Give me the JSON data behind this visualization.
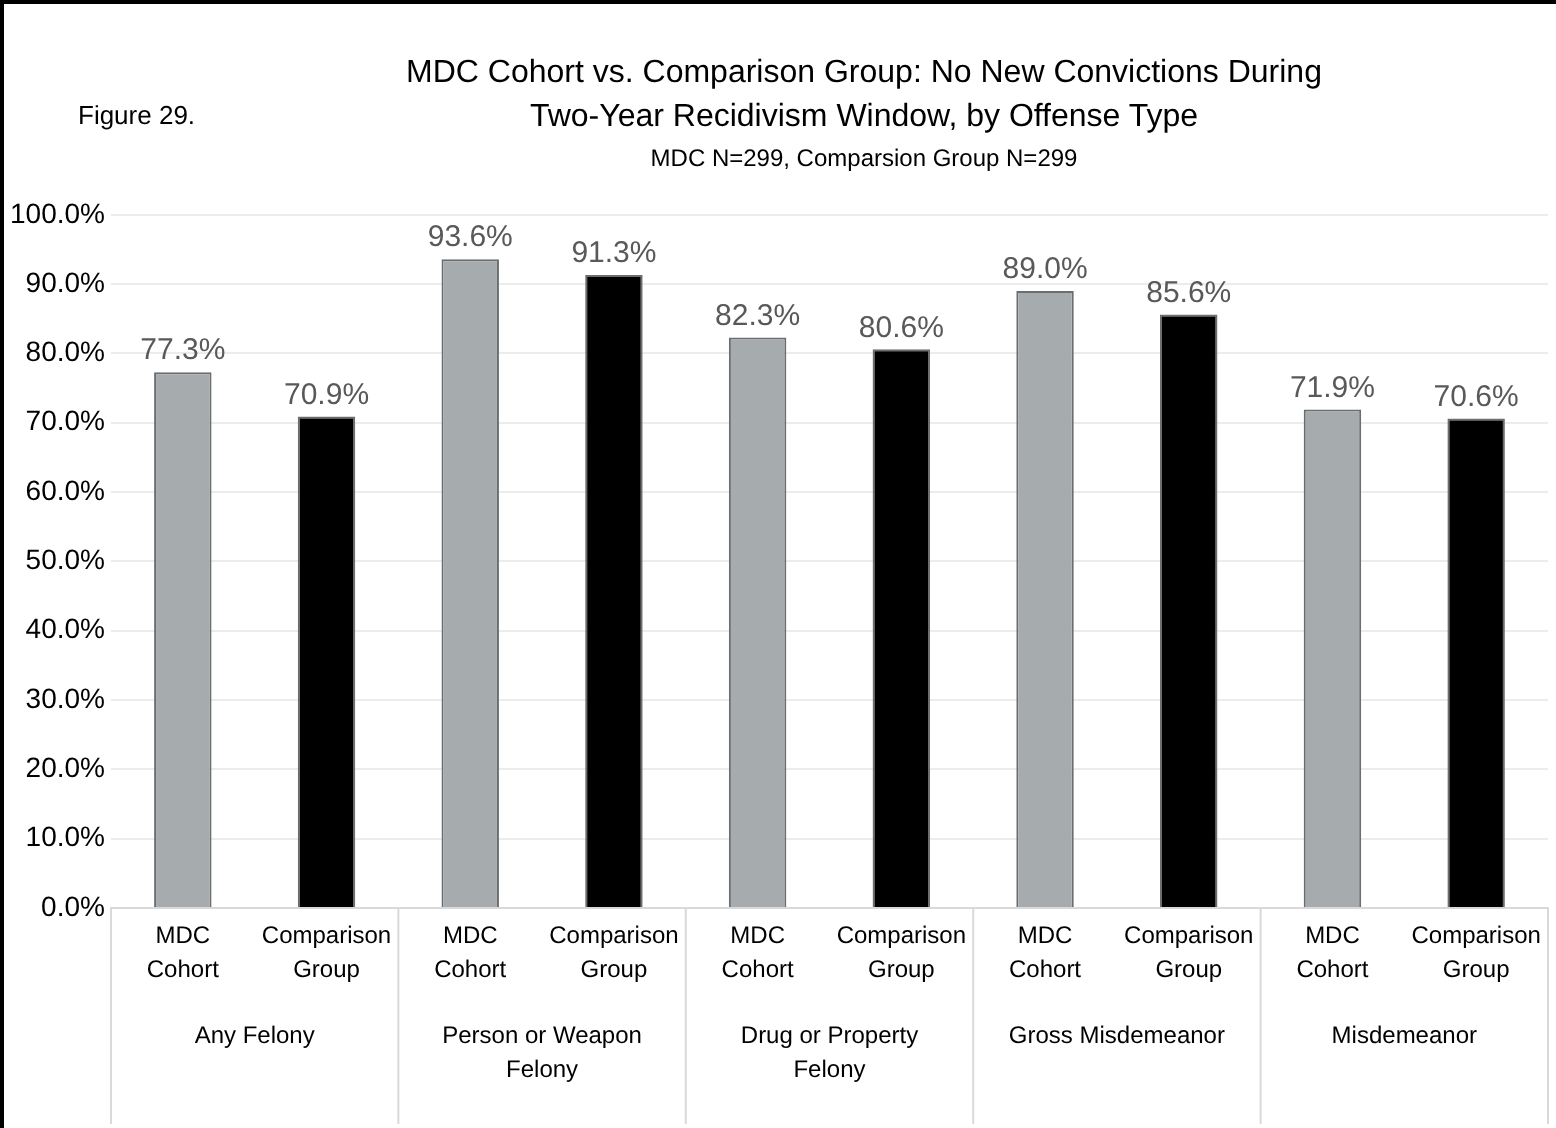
{
  "chart_data": {
    "type": "bar",
    "title": "MDC Cohort vs. Comparison Group: No New Convictions During Two-Year Recidivism Window, by Offense Type",
    "subtitle": "MDC N=299, Comparsion Group N=299",
    "annotations": [
      "Figure 29."
    ],
    "categories": [
      "Any Felony",
      "Person or Weapon Felony",
      "Drug or Property Felony",
      "Gross Misdemeanor",
      "Misdemeanor"
    ],
    "series": [
      {
        "name": "MDC Cohort",
        "color": "#a6abad",
        "values": [
          77.3,
          93.6,
          82.3,
          89.0,
          71.9
        ],
        "value_labels": [
          "77.3%",
          "93.6%",
          "82.3%",
          "89.0%",
          "71.9%"
        ]
      },
      {
        "name": "Comparison Group",
        "color": "#000000",
        "values": [
          70.9,
          91.3,
          80.6,
          85.6,
          70.6
        ],
        "value_labels": [
          "70.9%",
          "91.3%",
          "80.6%",
          "85.6%",
          "70.6%"
        ]
      }
    ],
    "ylim": [
      0,
      100
    ],
    "yticks": [
      {
        "value": 0,
        "label": "0.0%"
      },
      {
        "value": 10,
        "label": "10.0%"
      },
      {
        "value": 20,
        "label": "20.0%"
      },
      {
        "value": 30,
        "label": "30.0%"
      },
      {
        "value": 40,
        "label": "40.0%"
      },
      {
        "value": 50,
        "label": "50.0%"
      },
      {
        "value": 60,
        "label": "60.0%"
      },
      {
        "value": 70,
        "label": "70.0%"
      },
      {
        "value": 80,
        "label": "80.0%"
      },
      {
        "value": 90,
        "label": "90.0%"
      },
      {
        "value": 100,
        "label": "100.0%"
      }
    ],
    "grid": "y",
    "legend": false
  }
}
